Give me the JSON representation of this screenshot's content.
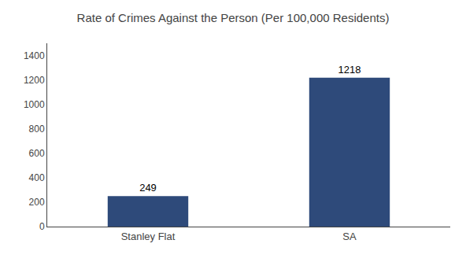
{
  "chart_data": {
    "type": "bar",
    "title": "Rate of Crimes Against the Person (Per 100,000 Residents)",
    "categories": [
      "Stanley Flat",
      "SA"
    ],
    "values": [
      249,
      1218
    ],
    "color": "#2e4a7a",
    "ylim": [
      0,
      1500
    ],
    "yticks": [
      0,
      200,
      400,
      600,
      800,
      1000,
      1200,
      1400
    ],
    "grid": false,
    "data_labels": true
  }
}
